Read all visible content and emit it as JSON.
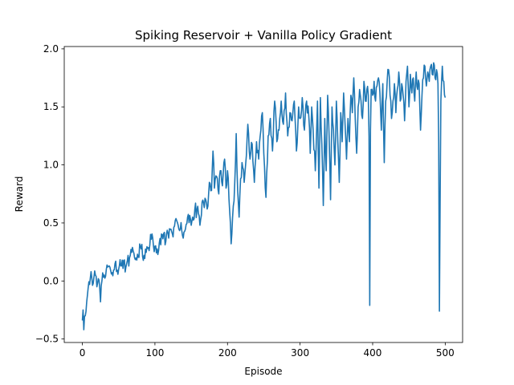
{
  "chart_data": {
    "type": "line",
    "title": "Spiking Reservoir + Vanilla Policy Gradient",
    "xlabel": "Episode",
    "ylabel": "Reward",
    "xlim": [
      -24.95,
      523.95
    ],
    "ylim": [
      -0.53,
      2.02
    ],
    "xticks": [
      0,
      100,
      200,
      300,
      400,
      500
    ],
    "xtick_labels": [
      "0",
      "100",
      "200",
      "300",
      "400",
      "500"
    ],
    "yticks": [
      -0.5,
      0.0,
      0.5,
      1.0,
      1.5,
      2.0
    ],
    "ytick_labels": [
      "−0.5",
      "0.0",
      "0.5",
      "1.0",
      "1.5",
      "2.0"
    ],
    "grid": false,
    "series": [
      {
        "color": "#1f77b4",
        "x_start": 0,
        "x_step": 1,
        "anchors": [
          [
            0,
            -0.34
          ],
          [
            1,
            -0.25
          ],
          [
            2,
            -0.42
          ],
          [
            4,
            -0.3
          ],
          [
            6,
            -0.18
          ],
          [
            8,
            -0.06
          ],
          [
            10,
            -0.03
          ],
          [
            12,
            0.08
          ],
          [
            15,
            -0.02
          ],
          [
            18,
            0.05
          ],
          [
            20,
            -0.05
          ],
          [
            22,
            0.02
          ],
          [
            25,
            -0.18
          ],
          [
            28,
            0.07
          ],
          [
            32,
            0.04
          ],
          [
            35,
            0.12
          ],
          [
            40,
            0.06
          ],
          [
            45,
            0.15
          ],
          [
            50,
            0.1
          ],
          [
            55,
            0.18
          ],
          [
            60,
            0.12
          ],
          [
            65,
            0.2
          ],
          [
            70,
            0.26
          ],
          [
            75,
            0.18
          ],
          [
            80,
            0.3
          ],
          [
            85,
            0.22
          ],
          [
            90,
            0.28
          ],
          [
            95,
            0.36
          ],
          [
            100,
            0.3
          ],
          [
            105,
            0.26
          ],
          [
            110,
            0.4
          ],
          [
            115,
            0.34
          ],
          [
            120,
            0.45
          ],
          [
            125,
            0.38
          ],
          [
            130,
            0.52
          ],
          [
            135,
            0.45
          ],
          [
            140,
            0.42
          ],
          [
            145,
            0.55
          ],
          [
            150,
            0.48
          ],
          [
            155,
            0.62
          ],
          [
            160,
            0.58
          ],
          [
            162,
            0.48
          ],
          [
            165,
            0.68
          ],
          [
            170,
            0.7
          ],
          [
            172,
            0.62
          ],
          [
            175,
            0.85
          ],
          [
            178,
            0.78
          ],
          [
            180,
            1.12
          ],
          [
            182,
            0.8
          ],
          [
            185,
            0.9
          ],
          [
            188,
            0.75
          ],
          [
            190,
            0.95
          ],
          [
            193,
            0.82
          ],
          [
            196,
            1.05
          ],
          [
            198,
            0.8
          ],
          [
            200,
            0.95
          ],
          [
            203,
            0.6
          ],
          [
            205,
            0.32
          ],
          [
            207,
            0.55
          ],
          [
            210,
            0.85
          ],
          [
            212,
            1.27
          ],
          [
            214,
            0.78
          ],
          [
            216,
            0.55
          ],
          [
            218,
            0.88
          ],
          [
            220,
            1.02
          ],
          [
            223,
            0.85
          ],
          [
            226,
            1.08
          ],
          [
            228,
            1.35
          ],
          [
            231,
            1.05
          ],
          [
            234,
            1.18
          ],
          [
            237,
            0.85
          ],
          [
            240,
            1.2
          ],
          [
            243,
            1.05
          ],
          [
            246,
            1.3
          ],
          [
            248,
            1.45
          ],
          [
            250,
            1.1
          ],
          [
            253,
            0.72
          ],
          [
            256,
            1.25
          ],
          [
            259,
            1.4
          ],
          [
            262,
            1.12
          ],
          [
            265,
            1.55
          ],
          [
            268,
            1.2
          ],
          [
            271,
            1.3
          ],
          [
            274,
            1.55
          ],
          [
            277,
            1.35
          ],
          [
            280,
            1.62
          ],
          [
            283,
            1.25
          ],
          [
            286,
            1.45
          ],
          [
            289,
            1.38
          ],
          [
            292,
            1.55
          ],
          [
            295,
            1.12
          ],
          [
            298,
            1.5
          ],
          [
            300,
            1.4
          ],
          [
            303,
            1.58
          ],
          [
            306,
            1.3
          ],
          [
            309,
            1.55
          ],
          [
            312,
            1.42
          ],
          [
            314,
            1.1
          ],
          [
            316,
            1.5
          ],
          [
            318,
            1.3
          ],
          [
            321,
            0.95
          ],
          [
            324,
            1.55
          ],
          [
            326,
            0.8
          ],
          [
            328,
            1.58
          ],
          [
            330,
            1.18
          ],
          [
            332,
            0.65
          ],
          [
            334,
            1.4
          ],
          [
            336,
            0.95
          ],
          [
            338,
            1.6
          ],
          [
            340,
            1.25
          ],
          [
            342,
            0.7
          ],
          [
            344,
            1.5
          ],
          [
            346,
            1.3
          ],
          [
            348,
            1.0
          ],
          [
            350,
            1.55
          ],
          [
            352,
            1.2
          ],
          [
            354,
            0.85
          ],
          [
            356,
            1.45
          ],
          [
            358,
            1.2
          ],
          [
            360,
            1.62
          ],
          [
            362,
            1.35
          ],
          [
            364,
            1.05
          ],
          [
            366,
            1.4
          ],
          [
            368,
            1.2
          ],
          [
            370,
            1.6
          ],
          [
            372,
            1.45
          ],
          [
            374,
            1.75
          ],
          [
            376,
            1.4
          ],
          [
            378,
            1.1
          ],
          [
            380,
            1.5
          ],
          [
            382,
            1.65
          ],
          [
            384,
            1.55
          ],
          [
            386,
            1.4
          ],
          [
            388,
            1.72
          ],
          [
            390,
            1.55
          ],
          [
            392,
            1.65
          ],
          [
            394,
            1.6
          ],
          [
            395,
            1.25
          ],
          [
            396,
            -0.21
          ],
          [
            397,
            1.3
          ],
          [
            398,
            1.65
          ],
          [
            400,
            1.6
          ],
          [
            402,
            1.72
          ],
          [
            404,
            1.55
          ],
          [
            406,
            1.68
          ],
          [
            408,
            1.75
          ],
          [
            410,
            1.62
          ],
          [
            412,
            1.3
          ],
          [
            414,
            1.7
          ],
          [
            416,
            1.02
          ],
          [
            418,
            1.55
          ],
          [
            420,
            1.72
          ],
          [
            422,
            1.82
          ],
          [
            424,
            1.6
          ],
          [
            426,
            1.4
          ],
          [
            428,
            1.55
          ],
          [
            430,
            1.7
          ],
          [
            432,
            1.45
          ],
          [
            434,
            1.65
          ],
          [
            436,
            1.8
          ],
          [
            438,
            1.55
          ],
          [
            440,
            1.7
          ],
          [
            442,
            1.6
          ],
          [
            444,
            1.38
          ],
          [
            446,
            1.72
          ],
          [
            448,
            1.85
          ],
          [
            450,
            1.5
          ],
          [
            452,
            1.78
          ],
          [
            454,
            1.62
          ],
          [
            456,
            1.75
          ],
          [
            458,
            1.55
          ],
          [
            460,
            1.8
          ],
          [
            462,
            1.65
          ],
          [
            464,
            1.7
          ],
          [
            466,
            1.3
          ],
          [
            468,
            1.6
          ],
          [
            470,
            1.75
          ],
          [
            472,
            1.85
          ],
          [
            474,
            1.68
          ],
          [
            476,
            1.8
          ],
          [
            478,
            1.72
          ],
          [
            480,
            1.85
          ],
          [
            482,
            1.78
          ],
          [
            484,
            1.88
          ],
          [
            486,
            1.75
          ],
          [
            488,
            1.82
          ],
          [
            490,
            1.7
          ],
          [
            491,
            1.2
          ],
          [
            492,
            -0.26
          ],
          [
            494,
            1.55
          ],
          [
            496,
            1.85
          ],
          [
            498,
            1.72
          ],
          [
            500,
            1.58
          ]
        ]
      }
    ]
  }
}
